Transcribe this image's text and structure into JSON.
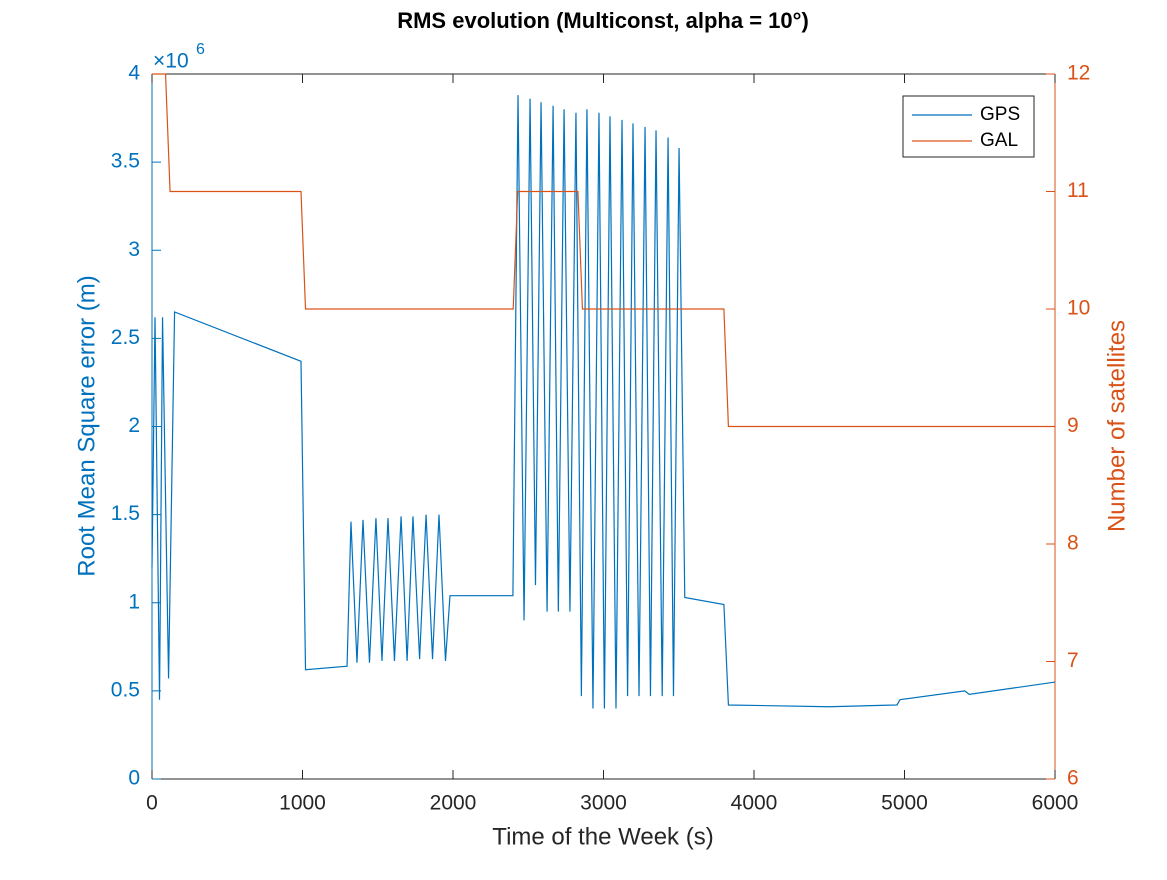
{
  "chart_data": {
    "type": "line",
    "title": "RMS evolution (Multiconst, alpha = 10°)",
    "x_label": "Time of the Week (s)",
    "y_label": "Root Mean Square error (m)",
    "y2_label": "Number of satellites",
    "y_exponent": {
      "base": "×10",
      "power": "6"
    },
    "xlim": [
      0,
      6000
    ],
    "xticks": [
      0,
      1000,
      2000,
      3000,
      4000,
      5000,
      6000
    ],
    "ylim": [
      0,
      4
    ],
    "yticks": [
      0,
      0.5,
      1,
      1.5,
      2,
      2.5,
      3,
      3.5,
      4
    ],
    "y2lim": [
      6,
      12
    ],
    "y2ticks": [
      6,
      7,
      8,
      9,
      10,
      11,
      12
    ],
    "legend": "top-right",
    "series": [
      {
        "name": "GPS",
        "color": "#0072BD",
        "x": [
          0,
          20,
          50,
          70,
          110,
          150,
          990,
          1020,
          1296,
          1322,
          1362,
          1402,
          1445,
          1488,
          1528,
          1568,
          1611,
          1655,
          1695,
          1734,
          1778,
          1821,
          1864,
          1907,
          1950,
          1980,
          2398,
          2432,
          2472,
          2512,
          2548,
          2585,
          2625,
          2665,
          2700,
          2738,
          2777,
          2817,
          2853,
          2890,
          2930,
          2970,
          3006,
          3043,
          3083,
          3123,
          3160,
          3196,
          3236,
          3276,
          3312,
          3349,
          3390,
          3429,
          3465,
          3502,
          3540,
          3800,
          3830,
          4500,
          4950,
          4970,
          5400,
          5430,
          6000
        ],
        "values": [
          1.2,
          2.62,
          0.45,
          2.62,
          0.57,
          2.65,
          2.37,
          0.62,
          0.64,
          1.46,
          0.66,
          1.47,
          0.66,
          1.48,
          0.67,
          1.48,
          0.67,
          1.49,
          0.67,
          1.49,
          0.68,
          1.5,
          0.68,
          1.5,
          0.67,
          1.04,
          1.04,
          3.88,
          0.9,
          3.86,
          1.1,
          3.84,
          0.95,
          3.82,
          0.95,
          3.8,
          0.95,
          3.78,
          0.47,
          3.8,
          0.4,
          3.78,
          0.4,
          3.76,
          0.4,
          3.74,
          0.47,
          3.72,
          0.47,
          3.7,
          0.47,
          3.68,
          0.47,
          3.64,
          0.47,
          3.58,
          1.03,
          0.99,
          0.42,
          0.41,
          0.42,
          0.45,
          0.5,
          0.48,
          0.55
        ]
      },
      {
        "name": "GAL",
        "color": "#D95319",
        "axis": "y2",
        "x": [
          0,
          90,
          120,
          990,
          1020,
          2400,
          2430,
          2830,
          2860,
          3800,
          3830,
          6000
        ],
        "values": [
          12,
          12,
          11,
          11,
          10,
          10,
          11,
          11,
          10,
          10,
          9,
          9
        ]
      }
    ]
  }
}
